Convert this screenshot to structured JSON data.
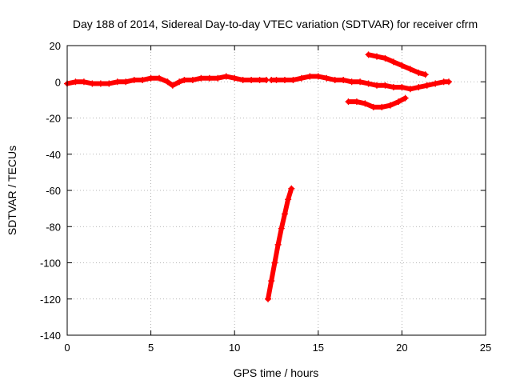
{
  "chart_data": {
    "type": "scatter",
    "title": "Day 188 of 2014, Sidereal Day-to-day VTEC variation (SDTVAR) for receiver cfrm",
    "xlabel": "GPS time / hours",
    "ylabel": "SDTVAR / TECUs",
    "xlim": [
      0,
      25
    ],
    "ylim": [
      -140,
      20
    ],
    "xticks": [
      0,
      5,
      10,
      15,
      20,
      25
    ],
    "yticks": [
      -140,
      -120,
      -100,
      -80,
      -60,
      -40,
      -20,
      0,
      20
    ],
    "xtick_labels": [
      "0",
      "5",
      "10",
      "15",
      "20",
      "25"
    ],
    "ytick_labels": [
      "-140",
      "-120",
      "-100",
      "-80",
      "-60",
      "-40",
      "-20",
      "0",
      "20"
    ],
    "grid": true,
    "legend": false,
    "marker": "plus",
    "color": "#ff0000",
    "series": [
      {
        "x": [
          0,
          0.5,
          1,
          1.5,
          2,
          2.5,
          3,
          3.5,
          4,
          4.5,
          5,
          5.5,
          6,
          6.3,
          6.7,
          7,
          7.5,
          8,
          8.5,
          9,
          9.5,
          10,
          10.5,
          11,
          11.5,
          11.9
        ],
        "y": [
          -1,
          0,
          0,
          -1,
          -1,
          -1,
          0,
          0,
          1,
          1,
          2,
          2,
          0,
          -2,
          0,
          1,
          1,
          2,
          2,
          2,
          3,
          2,
          1,
          1,
          1,
          1
        ]
      },
      {
        "x": [
          12.2,
          12.5,
          13,
          13.5,
          14,
          14.5,
          15,
          15.5,
          16,
          16.5,
          17,
          17.5,
          18,
          18.5,
          19,
          19.5,
          20,
          20.5,
          21,
          21.5,
          22,
          22.5,
          22.8
        ],
        "y": [
          1,
          1,
          1,
          1,
          2,
          3,
          3,
          2,
          1,
          1,
          0,
          0,
          -1,
          -2,
          -2,
          -3,
          -3,
          -4,
          -3,
          -2,
          -1,
          0,
          0
        ]
      },
      {
        "x": [
          12,
          12.2,
          12.4,
          12.6,
          12.8,
          13,
          13.2,
          13.4
        ],
        "y": [
          -120,
          -110,
          -100,
          -90,
          -81,
          -73,
          -65,
          -59
        ]
      },
      {
        "x": [
          18,
          18.5,
          19,
          19.5,
          20,
          20.5,
          21,
          21.4
        ],
        "y": [
          15,
          14,
          13,
          11,
          9,
          7,
          5,
          4
        ]
      },
      {
        "x": [
          16.8,
          17.3,
          17.8,
          18.3,
          18.8,
          19.3,
          19.8,
          20.2
        ],
        "y": [
          -11,
          -11,
          -12,
          -14,
          -14,
          -13,
          -11,
          -9
        ]
      }
    ]
  }
}
